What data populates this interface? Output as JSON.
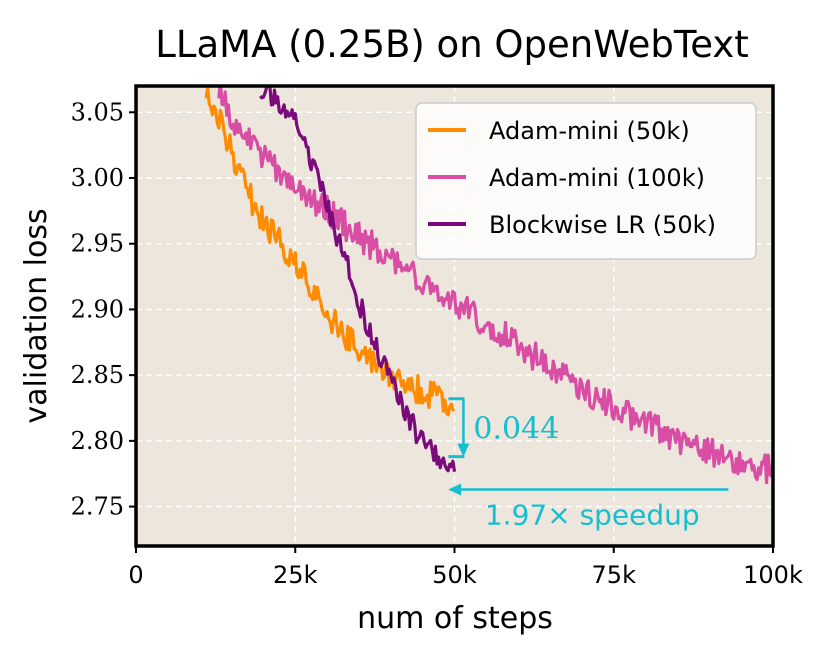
{
  "chart_data": {
    "type": "line",
    "title": "LLaMA (0.25B) on OpenWebText",
    "xlabel": "num of steps",
    "ylabel": "validation loss",
    "xlim": [
      0,
      100000
    ],
    "ylim": [
      2.72,
      3.07
    ],
    "x_ticks": [
      0,
      25000,
      50000,
      75000,
      100000
    ],
    "x_tick_labels": [
      "0",
      "25k",
      "50k",
      "75k",
      "100k"
    ],
    "y_ticks": [
      2.75,
      2.8,
      2.85,
      2.9,
      2.95,
      3.0,
      3.05
    ],
    "y_tick_labels": [
      "2.75",
      "2.80",
      "2.85",
      "2.90",
      "2.95",
      "3.00",
      "3.05"
    ],
    "grid": true,
    "background": "#ece6dd",
    "legend_position": "top-right",
    "series": [
      {
        "name": "Adam-mini (50k)",
        "color": "#ff8c00",
        "x": [
          11000,
          13000,
          15000,
          17000,
          19000,
          21000,
          23000,
          25000,
          27000,
          29000,
          31000,
          33000,
          35000,
          37000,
          39000,
          41000,
          43000,
          45000,
          47000,
          49000,
          50000
        ],
        "y": [
          3.07,
          3.045,
          3.02,
          2.995,
          2.975,
          2.96,
          2.948,
          2.936,
          2.918,
          2.902,
          2.89,
          2.88,
          2.872,
          2.862,
          2.855,
          2.848,
          2.842,
          2.837,
          2.833,
          2.829,
          2.828
        ]
      },
      {
        "name": "Adam-mini (100k)",
        "color": "#d94ea5",
        "x": [
          13000,
          15000,
          18000,
          21000,
          24000,
          27000,
          30000,
          33000,
          36000,
          39000,
          42000,
          45000,
          48000,
          51000,
          54000,
          57000,
          60000,
          63000,
          66000,
          69000,
          72000,
          75000,
          78000,
          81000,
          84000,
          87000,
          90000,
          93000,
          96000,
          100000
        ],
        "y": [
          3.07,
          3.045,
          3.027,
          3.012,
          2.998,
          2.985,
          2.975,
          2.963,
          2.952,
          2.942,
          2.932,
          2.922,
          2.912,
          2.903,
          2.893,
          2.883,
          2.873,
          2.863,
          2.853,
          2.843,
          2.834,
          2.826,
          2.818,
          2.811,
          2.804,
          2.798,
          2.792,
          2.786,
          2.781,
          2.778
        ]
      },
      {
        "name": "Blockwise LR (50k)",
        "color": "#7b0b7b",
        "x": [
          19500,
          22000,
          25000,
          28000,
          31000,
          33000,
          35000,
          37000,
          39000,
          41000,
          43000,
          45000,
          47000,
          49000,
          50000
        ],
        "y": [
          3.07,
          3.06,
          3.04,
          3.005,
          2.965,
          2.935,
          2.905,
          2.88,
          2.857,
          2.835,
          2.815,
          2.8,
          2.79,
          2.781,
          2.78
        ]
      }
    ],
    "annotations": {
      "gap_value": "0.044",
      "gap_top": 2.832,
      "gap_bottom": 2.788,
      "gap_x": 50300,
      "speedup_text": "1.97× speedup",
      "speedup_y": 2.763,
      "speedup_x_from": 93000,
      "speedup_x_to": 49000,
      "color": "#17becf"
    }
  }
}
